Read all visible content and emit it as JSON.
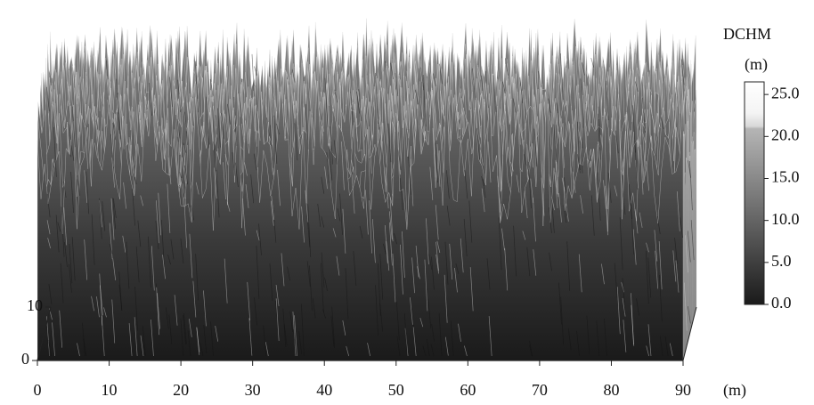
{
  "chart_data": {
    "type": "surface3d",
    "xlabel": "(m)",
    "xlim": [
      0,
      90
    ],
    "xticks": [
      0,
      10,
      20,
      30,
      40,
      50,
      60,
      70,
      80,
      90
    ],
    "ylim": [
      0,
      10
    ],
    "yticks": [
      0,
      10
    ],
    "colorbar": {
      "title": "DCHM",
      "unit": "(m)",
      "lim": [
        0,
        26.5
      ],
      "ticks": [
        {
          "value": 0,
          "label": "0.0"
        },
        {
          "value": 5,
          "label": "5.0"
        },
        {
          "value": 10,
          "label": "10.0"
        },
        {
          "value": 15,
          "label": "15.0"
        },
        {
          "value": 20,
          "label": "20.0"
        },
        {
          "value": 25,
          "label": "25.0"
        }
      ]
    }
  }
}
